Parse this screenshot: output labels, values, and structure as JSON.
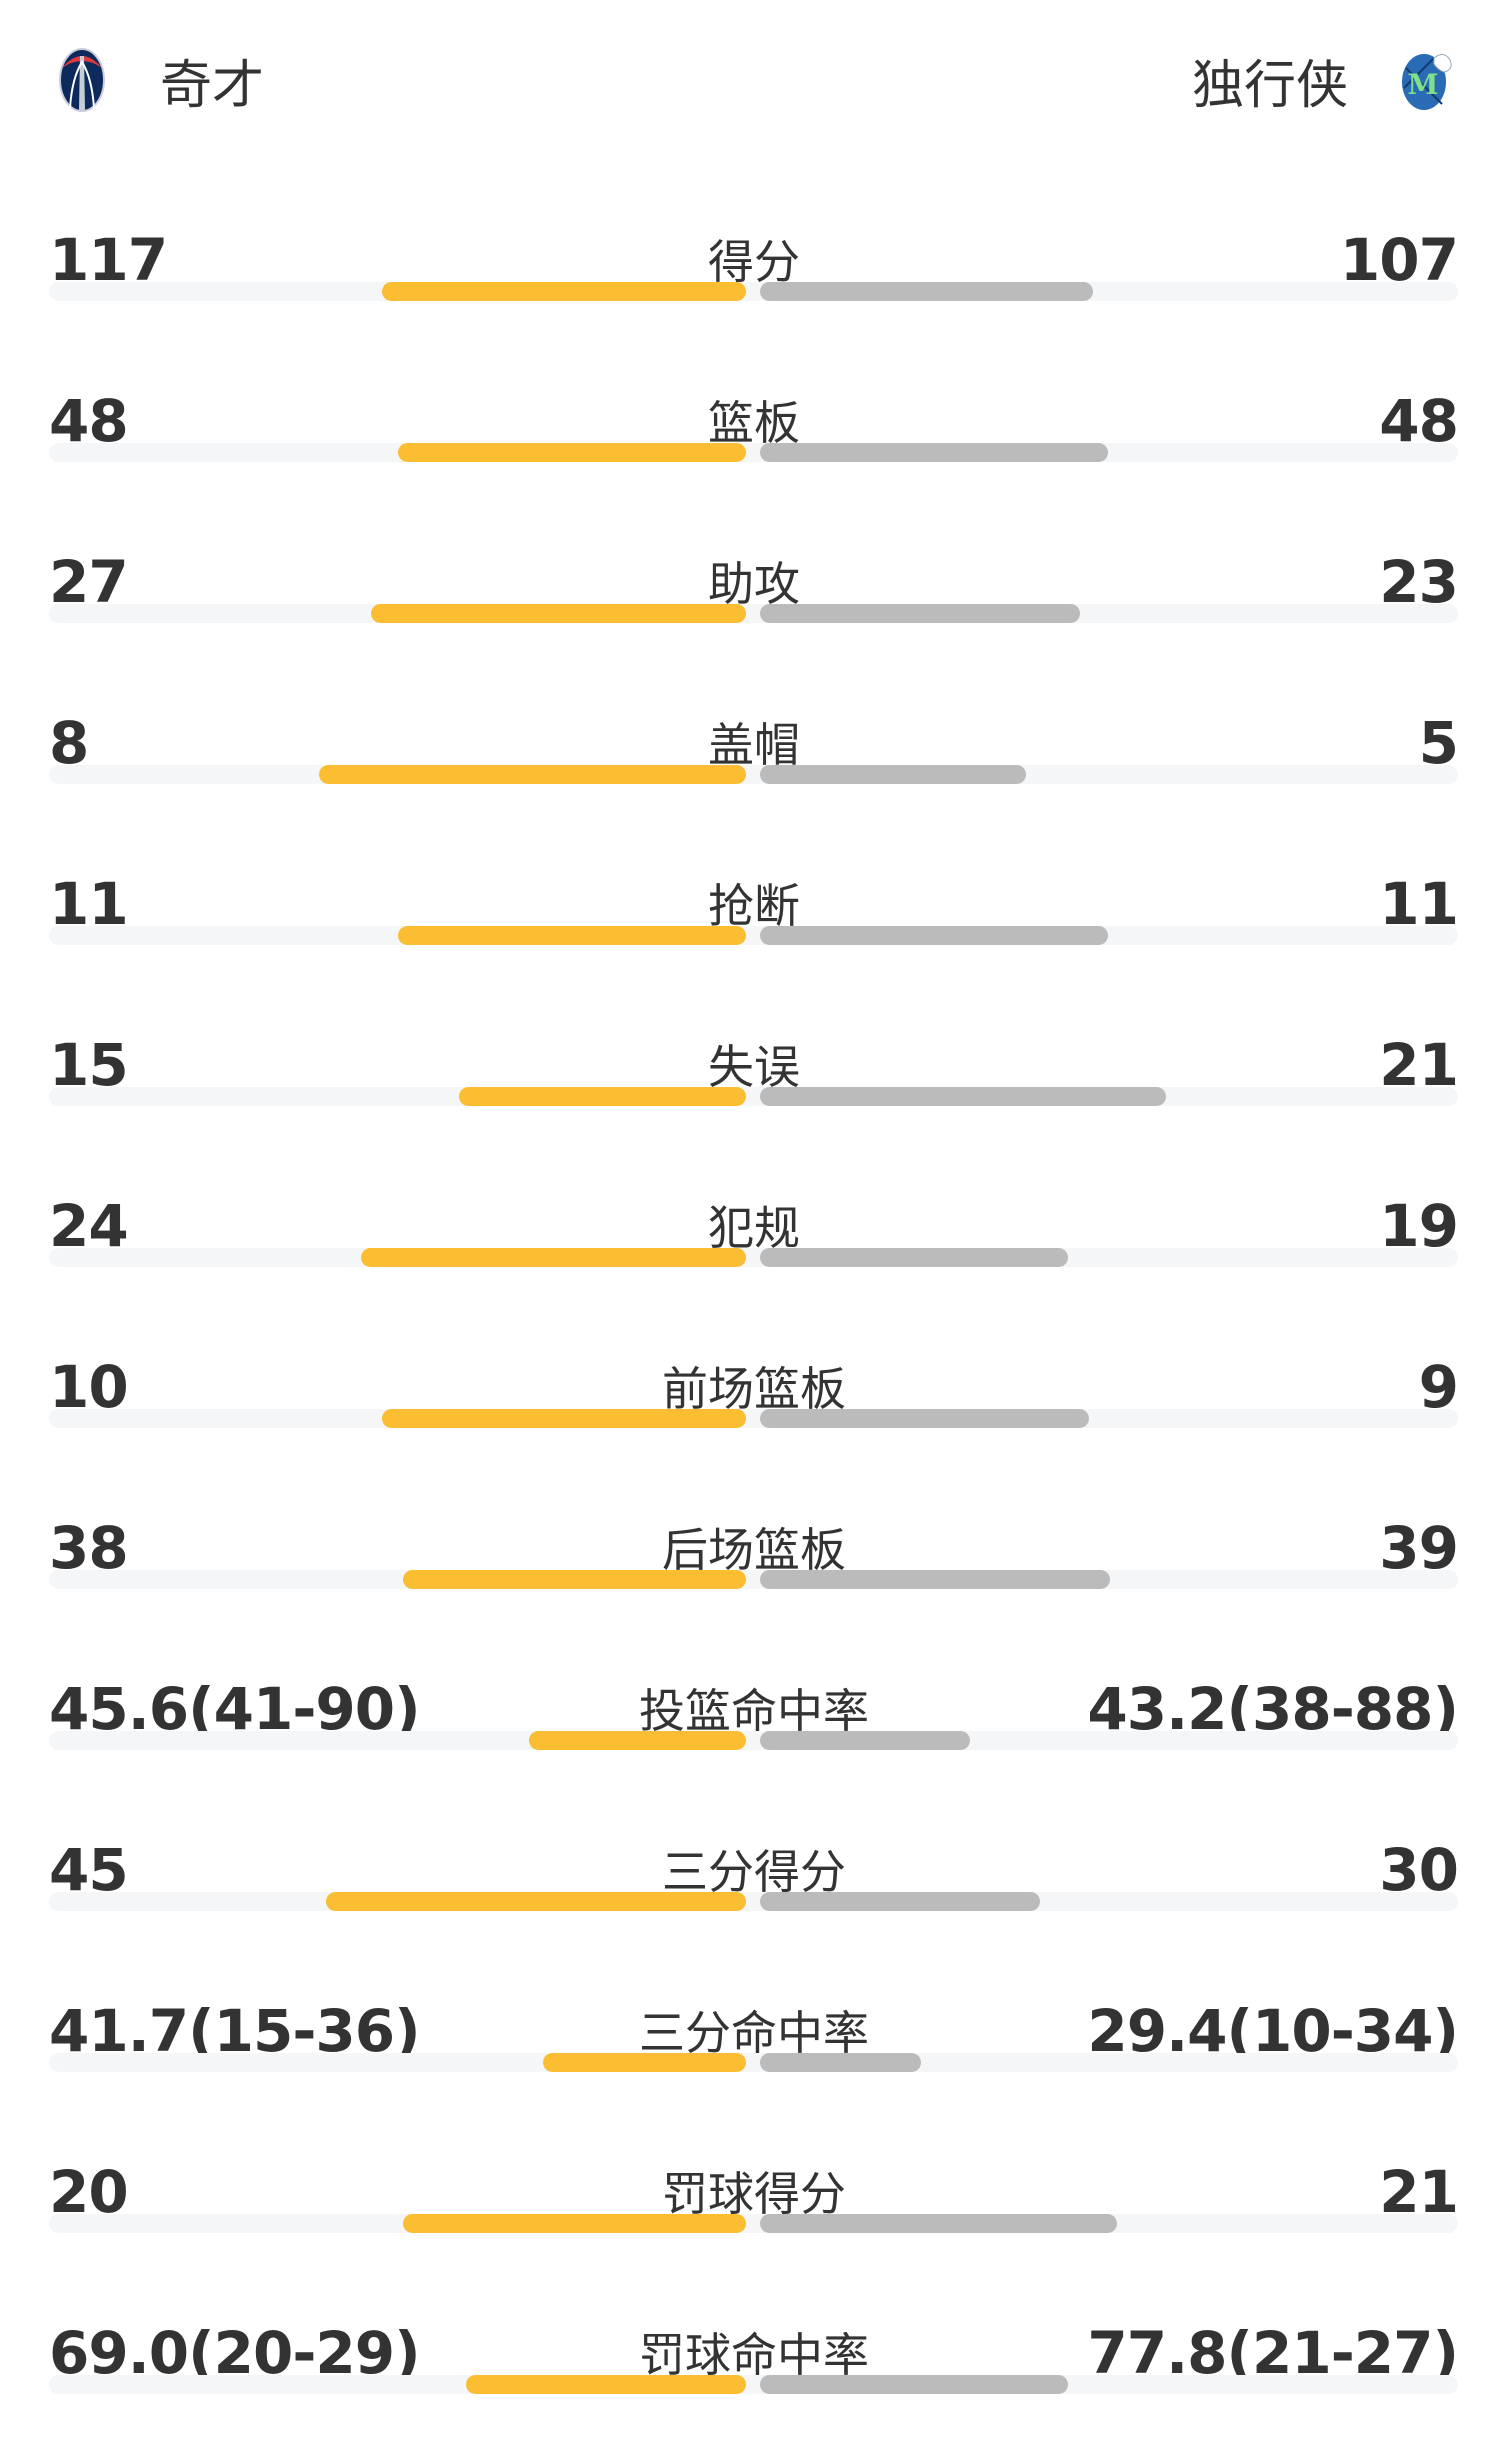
{
  "header": {
    "home": {
      "name": "奇才",
      "logo": "wizards-logo"
    },
    "away": {
      "name": "独行侠",
      "logo": "mavericks-logo"
    }
  },
  "colors": {
    "home_bar": "#fbbd32",
    "away_bar": "#bbbbbb",
    "track": "#f5f6f8"
  },
  "stats": [
    {
      "label": "得分",
      "home": "117",
      "away": "107",
      "home_fill": 0.52,
      "away_fill": 0.475
    },
    {
      "label": "篮板",
      "home": "48",
      "away": "48",
      "home_fill": 0.497,
      "away_fill": 0.497
    },
    {
      "label": "助攻",
      "home": "27",
      "away": "23",
      "home_fill": 0.536,
      "away_fill": 0.457
    },
    {
      "label": "盖帽",
      "home": "8",
      "away": "5",
      "home_fill": 0.61,
      "away_fill": 0.38
    },
    {
      "label": "抢断",
      "home": "11",
      "away": "11",
      "home_fill": 0.497,
      "away_fill": 0.497
    },
    {
      "label": "失误",
      "home": "15",
      "away": "21",
      "home_fill": 0.41,
      "away_fill": 0.58
    },
    {
      "label": "犯规",
      "home": "24",
      "away": "19",
      "home_fill": 0.55,
      "away_fill": 0.44
    },
    {
      "label": "前场篮板",
      "home": "10",
      "away": "9",
      "home_fill": 0.52,
      "away_fill": 0.47
    },
    {
      "label": "后场篮板",
      "home": "38",
      "away": "39",
      "home_fill": 0.49,
      "away_fill": 0.5
    },
    {
      "label": "投篮命中率",
      "home": "45.6(41-90)",
      "away": "43.2(38-88)",
      "home_fill": 0.31,
      "away_fill": 0.3
    },
    {
      "label": "三分得分",
      "home": "45",
      "away": "30",
      "home_fill": 0.6,
      "away_fill": 0.4
    },
    {
      "label": "三分命中率",
      "home": "41.7(15-36)",
      "away": "29.4(10-34)",
      "home_fill": 0.29,
      "away_fill": 0.23
    },
    {
      "label": "罚球得分",
      "home": "20",
      "away": "21",
      "home_fill": 0.49,
      "away_fill": 0.51
    },
    {
      "label": "罚球命中率",
      "home": "69.0(20-29)",
      "away": "77.8(21-27)",
      "home_fill": 0.4,
      "away_fill": 0.44
    }
  ]
}
